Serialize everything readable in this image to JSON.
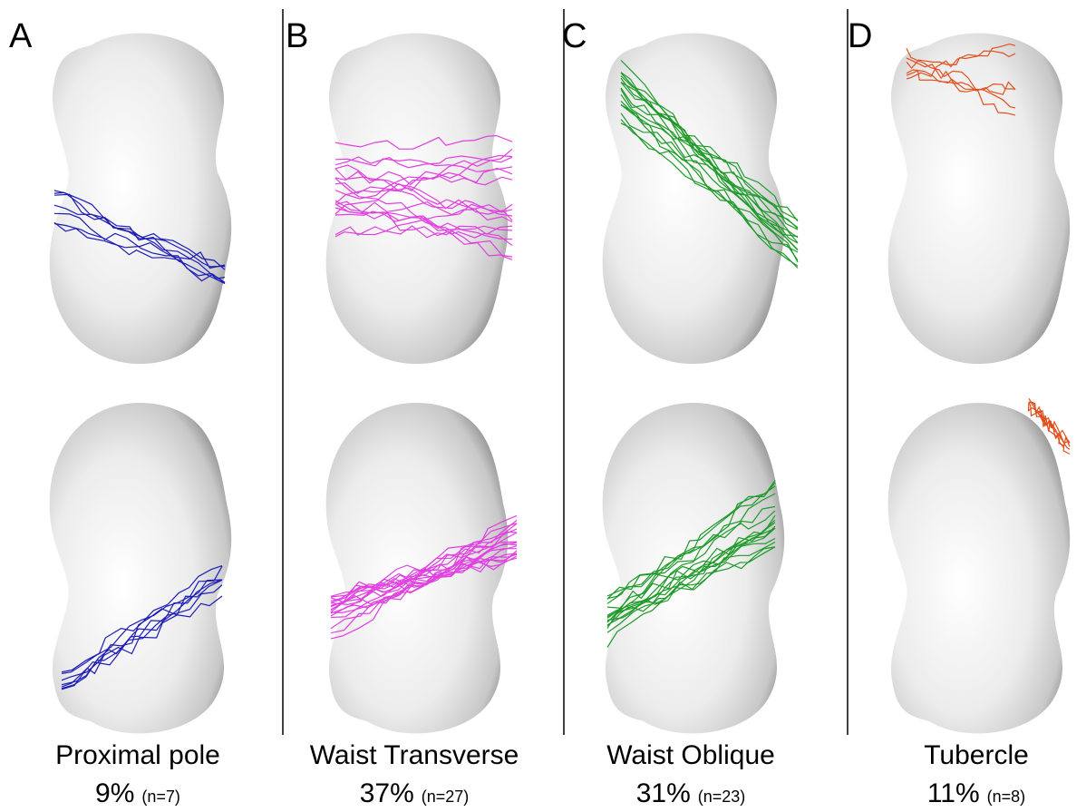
{
  "panels": [
    {
      "letter": "A",
      "name": "Proximal pole",
      "percent": "9%",
      "count": "(n=7)",
      "line_color": "#1c1cb4"
    },
    {
      "letter": "B",
      "name": "Waist Transverse",
      "percent": "37%",
      "count": "(n=27)",
      "line_color": "#e040e0"
    },
    {
      "letter": "C",
      "name": "Waist Oblique",
      "percent": "31%",
      "count": "(n=23)",
      "line_color": "#1f9a2a"
    },
    {
      "letter": "D",
      "name": "Tubercle",
      "percent": "11%",
      "count": "(n=8)",
      "line_color": "#e0501e"
    }
  ]
}
